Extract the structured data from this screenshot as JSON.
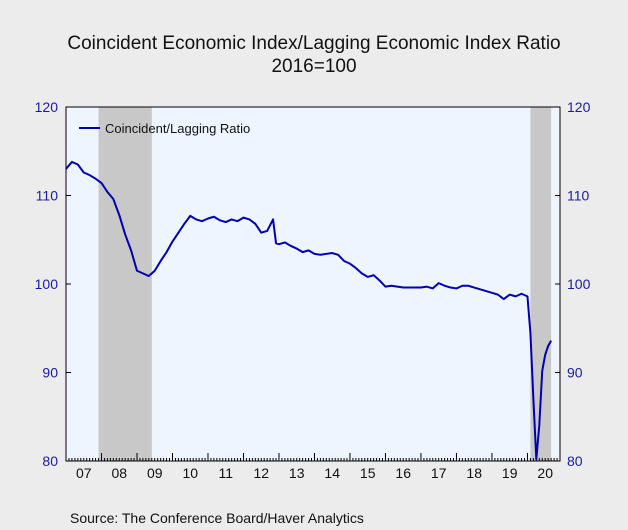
{
  "title_line1": "Coincident Economic Index/Lagging Economic Index Ratio",
  "title_line2": "2016=100",
  "source": "Source:  The Conference Board/Haver Analytics",
  "chart_data": {
    "type": "line",
    "title": "Coincident Economic Index/Lagging Economic Index Ratio",
    "subtitle": "2016=100",
    "ylim": [
      80,
      120
    ],
    "yticks": [
      80,
      90,
      100,
      110,
      120
    ],
    "xlim": [
      2007.0,
      2020.917
    ],
    "xtick_labels": [
      "07",
      "08",
      "09",
      "10",
      "11",
      "12",
      "13",
      "14",
      "15",
      "16",
      "17",
      "18",
      "19",
      "20"
    ],
    "legend": "top-left",
    "recessions": [
      [
        2007.917,
        2009.417
      ],
      [
        2020.083,
        2020.667
      ]
    ],
    "colors": {
      "line": "#0000b0",
      "recession": "#c8c8c8",
      "plot_bg": "#eef5ff",
      "axis_text": "#1a1aa6"
    },
    "series": [
      {
        "name": "Coincident/Lagging Ratio",
        "points": [
          [
            2007.0,
            113.0
          ],
          [
            2007.167,
            113.8
          ],
          [
            2007.333,
            113.5
          ],
          [
            2007.5,
            112.6
          ],
          [
            2007.667,
            112.3
          ],
          [
            2007.833,
            111.9
          ],
          [
            2008.0,
            111.4
          ],
          [
            2008.167,
            110.4
          ],
          [
            2008.333,
            109.6
          ],
          [
            2008.5,
            107.8
          ],
          [
            2008.667,
            105.6
          ],
          [
            2008.833,
            103.8
          ],
          [
            2009.0,
            101.5
          ],
          [
            2009.167,
            101.2
          ],
          [
            2009.333,
            100.9
          ],
          [
            2009.5,
            101.5
          ],
          [
            2009.667,
            102.6
          ],
          [
            2009.833,
            103.6
          ],
          [
            2010.0,
            104.8
          ],
          [
            2010.167,
            105.8
          ],
          [
            2010.333,
            106.8
          ],
          [
            2010.5,
            107.7
          ],
          [
            2010.667,
            107.3
          ],
          [
            2010.833,
            107.1
          ],
          [
            2011.0,
            107.4
          ],
          [
            2011.167,
            107.6
          ],
          [
            2011.333,
            107.2
          ],
          [
            2011.5,
            107.0
          ],
          [
            2011.667,
            107.3
          ],
          [
            2011.833,
            107.1
          ],
          [
            2012.0,
            107.5
          ],
          [
            2012.167,
            107.3
          ],
          [
            2012.333,
            106.8
          ],
          [
            2012.5,
            105.8
          ],
          [
            2012.667,
            106.0
          ],
          [
            2012.833,
            107.3
          ],
          [
            2012.917,
            104.6
          ],
          [
            2013.0,
            104.5
          ],
          [
            2013.167,
            104.7
          ],
          [
            2013.333,
            104.3
          ],
          [
            2013.5,
            104.0
          ],
          [
            2013.667,
            103.6
          ],
          [
            2013.833,
            103.8
          ],
          [
            2014.0,
            103.4
          ],
          [
            2014.167,
            103.3
          ],
          [
            2014.333,
            103.4
          ],
          [
            2014.5,
            103.5
          ],
          [
            2014.667,
            103.3
          ],
          [
            2014.833,
            102.6
          ],
          [
            2015.0,
            102.3
          ],
          [
            2015.167,
            101.8
          ],
          [
            2015.333,
            101.2
          ],
          [
            2015.5,
            100.8
          ],
          [
            2015.667,
            101.0
          ],
          [
            2015.833,
            100.4
          ],
          [
            2016.0,
            99.7
          ],
          [
            2016.167,
            99.8
          ],
          [
            2016.333,
            99.7
          ],
          [
            2016.5,
            99.6
          ],
          [
            2016.667,
            99.6
          ],
          [
            2016.833,
            99.6
          ],
          [
            2017.0,
            99.6
          ],
          [
            2017.167,
            99.7
          ],
          [
            2017.333,
            99.5
          ],
          [
            2017.5,
            100.1
          ],
          [
            2017.667,
            99.8
          ],
          [
            2017.833,
            99.6
          ],
          [
            2018.0,
            99.5
          ],
          [
            2018.167,
            99.8
          ],
          [
            2018.333,
            99.8
          ],
          [
            2018.5,
            99.6
          ],
          [
            2018.667,
            99.4
          ],
          [
            2018.833,
            99.2
          ],
          [
            2019.0,
            99.0
          ],
          [
            2019.167,
            98.8
          ],
          [
            2019.333,
            98.3
          ],
          [
            2019.5,
            98.8
          ],
          [
            2019.667,
            98.6
          ],
          [
            2019.833,
            98.9
          ],
          [
            2020.0,
            98.6
          ],
          [
            2020.083,
            94.5
          ],
          [
            2020.167,
            87.0
          ],
          [
            2020.25,
            80.2
          ],
          [
            2020.333,
            84.0
          ],
          [
            2020.417,
            90.2
          ],
          [
            2020.5,
            92.0
          ],
          [
            2020.583,
            93.0
          ],
          [
            2020.667,
            93.6
          ]
        ]
      }
    ]
  }
}
